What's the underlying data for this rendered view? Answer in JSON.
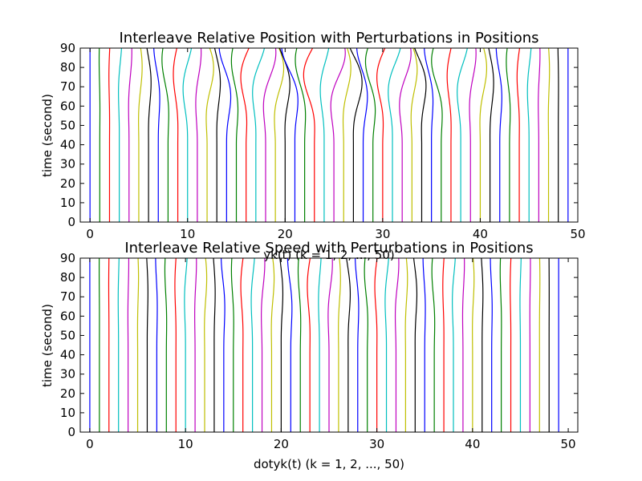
{
  "chart_data": [
    {
      "type": "line",
      "title": "Interleave Relative Position with Perturbations in Positions",
      "xlabel": "yk(t) (k = 1, 2, ..., 50)",
      "ylabel": "time (second)",
      "xlim": [
        -1,
        50
      ],
      "ylim": [
        0,
        90
      ],
      "xticks": [
        "0",
        "10",
        "20",
        "30",
        "40",
        "50"
      ],
      "yticks": [
        "0",
        "10",
        "20",
        "30",
        "40",
        "50",
        "60",
        "70",
        "80",
        "90"
      ],
      "series_count": 50,
      "series_start_positions": [
        0,
        1,
        2,
        3,
        4,
        5,
        6,
        7,
        8,
        9,
        10,
        11,
        12,
        13,
        14,
        15,
        16,
        17,
        18,
        19,
        20,
        21,
        22,
        23,
        24,
        25,
        26,
        27,
        28,
        29,
        30,
        31,
        32,
        33,
        34,
        35,
        36,
        37,
        38,
        39,
        40,
        41,
        42,
        43,
        44,
        45,
        46,
        47,
        48,
        49
      ],
      "perturbation_onset_time": 40,
      "max_displacement_at_t90": 1.2,
      "grid": false
    },
    {
      "type": "line",
      "title": "Interleave Relative Speed with Perturbations in Positions",
      "xlabel": "dotyk(t) (k = 1, 2, ..., 50)",
      "ylabel": "time (second)",
      "xlim": [
        -1,
        51
      ],
      "ylim": [
        0,
        90
      ],
      "xticks": [
        "0",
        "10",
        "20",
        "30",
        "40",
        "50"
      ],
      "yticks": [
        "0",
        "10",
        "20",
        "30",
        "40",
        "50",
        "60",
        "70",
        "80",
        "90"
      ],
      "series_count": 50,
      "series_start_positions": [
        0,
        1,
        2,
        3,
        4,
        5,
        6,
        7,
        8,
        9,
        10,
        11,
        12,
        13,
        14,
        15,
        16,
        17,
        18,
        19,
        20,
        21,
        22,
        23,
        24,
        25,
        26,
        27,
        28,
        29,
        30,
        31,
        32,
        33,
        34,
        35,
        36,
        37,
        38,
        39,
        40,
        41,
        42,
        43,
        44,
        45,
        46,
        47,
        48,
        49
      ],
      "perturbation_onset_time": 40,
      "max_displacement_at_t90": 0.4,
      "grid": false
    }
  ],
  "colors": {
    "cycle": [
      "#0000ff",
      "#008000",
      "#ff0000",
      "#00bfbf",
      "#bf00bf",
      "#bfbf00",
      "#000000"
    ]
  }
}
